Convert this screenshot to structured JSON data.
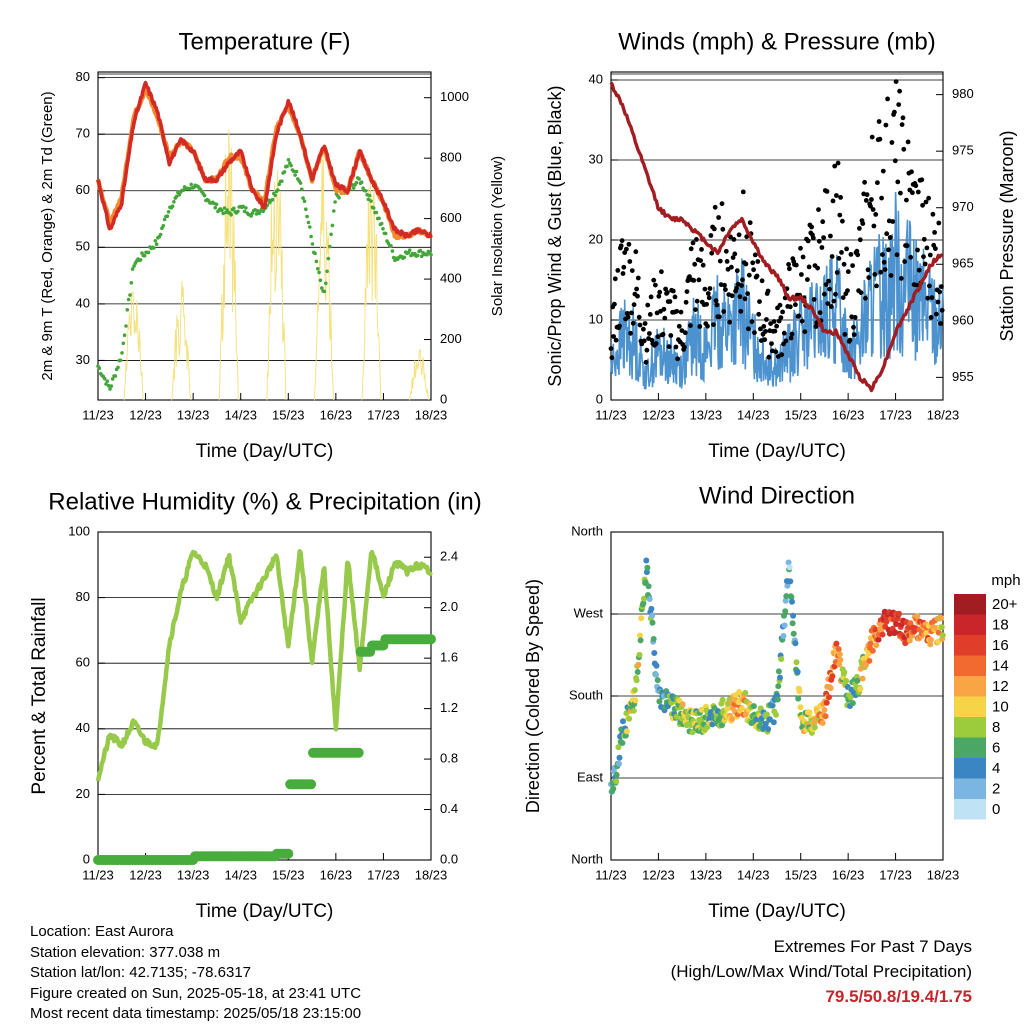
{
  "temperature": {
    "title": "Temperature (F)",
    "ylabel_left": "2m & 9m T (Red, Orange) & 2m Td (Green)",
    "ylabel_right": "Solar Insolation (Yellow)",
    "xlabel": "Time (Day/UTC)",
    "left_ticks": [
      "30",
      "40",
      "50",
      "60",
      "70",
      "80"
    ],
    "right_ticks": [
      "0",
      "200",
      "400",
      "600",
      "800",
      "1000"
    ]
  },
  "winds": {
    "title": "Winds (mph) & Pressure (mb)",
    "ylabel_left": "Sonic/Prop Wind & Gust (Blue, Black)",
    "ylabel_right": "Station Pressure (Maroon)",
    "xlabel": "Time (Day/UTC)",
    "left_ticks": [
      "0",
      "10",
      "20",
      "30",
      "40"
    ],
    "right_ticks": [
      "955",
      "960",
      "965",
      "970",
      "975",
      "980"
    ]
  },
  "humidity": {
    "title": "Relative Humidity (%) & Precipitation (in)",
    "ylabel_left": "Percent & Total Rainfall",
    "xlabel": "Time (Day/UTC)",
    "left_ticks": [
      "0",
      "20",
      "40",
      "60",
      "80",
      "100"
    ],
    "right_ticks": [
      "0.0",
      "0.4",
      "0.8",
      "1.2",
      "1.6",
      "2.0",
      "2.4"
    ]
  },
  "direction": {
    "title": "Wind Direction",
    "ylabel_left": "Direction (Colored By Speed)",
    "xlabel": "Time (Day/UTC)",
    "ticks": [
      "North",
      "East",
      "South",
      "West",
      "North"
    ],
    "legend_title": "mph",
    "legend_labels": [
      "20+",
      "18",
      "16",
      "14",
      "12",
      "10",
      "8",
      "6",
      "4",
      "2",
      "0"
    ],
    "legend_colors": [
      "#a11d21",
      "#c9252b",
      "#e03d2b",
      "#f26a30",
      "#f9a546",
      "#f6d448",
      "#9ccb3c",
      "#4aa766",
      "#3b85c3",
      "#7bb6e2",
      "#bfe2f5"
    ]
  },
  "x_ticks": [
    "11/23",
    "12/23",
    "13/23",
    "14/23",
    "15/23",
    "16/23",
    "17/23",
    "18/23"
  ],
  "info": {
    "location": "Location: East Aurora",
    "elevation": "Station elevation: 377.038 m",
    "latlon": "Station lat/lon: 42.7135; -78.6317",
    "created": "Figure created on Sun, 2025-05-18, at 23:41 UTC",
    "recent": "Most recent data timestamp: 2025/05/18 23:15:00"
  },
  "extremes": {
    "title": "Extremes For Past 7 Days",
    "subtitle": "(High/Low/Max Wind/Total Precipitation)",
    "values": "79.5/50.8/19.4/1.75"
  },
  "colors": {
    "temp_2m": "#d42a25",
    "temp_9m": "#f28a2e",
    "dewpoint": "#44a63a",
    "solar": "#f5e07a",
    "wind": "#4b92cf",
    "gust": "#000000",
    "pressure": "#a11d21",
    "rh": "#97c94a",
    "precip": "#48ac3c"
  },
  "chart_data": [
    {
      "type": "line",
      "title": "Temperature (F)",
      "xlabel": "Time (Day/UTC)",
      "ylabel": "2m & 9m T (Red, Orange) & 2m Td (Green)",
      "y2label": "Solar Insolation (Yellow)",
      "ylim": [
        23,
        81
      ],
      "y2lim": [
        0,
        1085
      ],
      "x": [
        11.0,
        11.25,
        11.5,
        11.75,
        12.0,
        12.25,
        12.5,
        12.75,
        13.0,
        13.25,
        13.5,
        13.75,
        14.0,
        14.25,
        14.5,
        14.75,
        15.0,
        15.25,
        15.5,
        15.75,
        16.0,
        16.25,
        16.5,
        16.75,
        17.0,
        17.25,
        17.5,
        17.75,
        18.0
      ],
      "series": [
        {
          "name": "2m T",
          "values": [
            62,
            53,
            58,
            72,
            79,
            74,
            65,
            69,
            67,
            62,
            62,
            65,
            67,
            60,
            57,
            70,
            76,
            70,
            62,
            68,
            61,
            60,
            67,
            62,
            58,
            53,
            52,
            53,
            52
          ]
        },
        {
          "name": "9m T",
          "values": [
            62,
            54,
            59,
            73,
            78,
            73,
            66,
            69,
            67,
            62,
            62,
            66,
            66,
            60,
            58,
            71,
            75,
            70,
            62,
            68,
            60,
            60,
            67,
            62,
            58,
            52,
            52,
            53,
            52
          ]
        },
        {
          "name": "2m Td",
          "values": [
            29,
            25,
            31,
            47,
            49,
            51,
            57,
            60,
            61,
            59,
            57,
            56,
            57,
            56,
            57,
            60,
            65,
            62,
            51,
            41,
            59,
            60,
            62,
            58,
            53,
            48,
            49,
            49,
            49
          ]
        },
        {
          "name": "Solar Insolation",
          "axis": "right",
          "values": [
            0,
            0,
            0,
            450,
            0,
            0,
            0,
            400,
            0,
            0,
            0,
            950,
            0,
            0,
            0,
            1000,
            0,
            0,
            0,
            880,
            0,
            0,
            0,
            820,
            0,
            0,
            0,
            180,
            0
          ]
        }
      ]
    },
    {
      "type": "line",
      "title": "Winds (mph) & Pressure (mb)",
      "xlabel": "Time (Day/UTC)",
      "ylabel": "Sonic/Prop Wind & Gust (Blue, Black)",
      "y2label": "Station Pressure (Maroon)",
      "ylim": [
        0,
        41
      ],
      "y2lim": [
        953,
        982
      ],
      "x": [
        11.0,
        11.25,
        11.5,
        11.75,
        12.0,
        12.25,
        12.5,
        12.75,
        13.0,
        13.25,
        13.5,
        13.75,
        14.0,
        14.25,
        14.5,
        14.75,
        15.0,
        15.25,
        15.5,
        15.75,
        16.0,
        16.25,
        16.5,
        16.75,
        17.0,
        17.25,
        17.5,
        17.75,
        18.0
      ],
      "series": [
        {
          "name": "Wind",
          "values": [
            4,
            8,
            7,
            3,
            6,
            5,
            4,
            8,
            6,
            10,
            9,
            11,
            7,
            5,
            4,
            6,
            8,
            9,
            10,
            12,
            6,
            8,
            12,
            13,
            16,
            14,
            12,
            11,
            9
          ]
        },
        {
          "name": "Gust",
          "values": [
            8,
            16,
            14,
            8,
            12,
            10,
            8,
            16,
            12,
            18,
            16,
            19,
            14,
            10,
            8,
            12,
            14,
            16,
            18,
            22,
            12,
            16,
            24,
            26,
            28,
            24,
            20,
            18,
            16
          ]
        },
        {
          "name": "Station Pressure",
          "axis": "right",
          "values": [
            981,
            979,
            976,
            973,
            970,
            969,
            969,
            968,
            967,
            966,
            968,
            969,
            967,
            965,
            964,
            962,
            962,
            961,
            959,
            959,
            957,
            955,
            954,
            956,
            959,
            961,
            963,
            965,
            966
          ]
        }
      ]
    },
    {
      "type": "line",
      "title": "Relative Humidity (%) & Precipitation (in)",
      "xlabel": "Time (Day/UTC)",
      "ylabel": "Percent & Total Rainfall",
      "ylim": [
        0,
        100
      ],
      "y2lim": [
        0,
        2.6
      ],
      "x": [
        11.0,
        11.25,
        11.5,
        11.75,
        12.0,
        12.25,
        12.5,
        12.75,
        13.0,
        13.25,
        13.5,
        13.75,
        14.0,
        14.25,
        14.5,
        14.75,
        15.0,
        15.25,
        15.5,
        15.75,
        16.0,
        16.25,
        16.5,
        16.75,
        17.0,
        17.25,
        17.5,
        17.75,
        18.0
      ],
      "series": [
        {
          "name": "Relative Humidity",
          "values": [
            25,
            38,
            35,
            42,
            36,
            35,
            66,
            82,
            94,
            90,
            80,
            93,
            73,
            80,
            86,
            93,
            65,
            95,
            60,
            90,
            40,
            92,
            58,
            95,
            80,
            91,
            88,
            90,
            88
          ]
        },
        {
          "name": "Total Rainfall",
          "axis": "right",
          "values": [
            0,
            0,
            0,
            0,
            0,
            0,
            0,
            0,
            0.03,
            0.03,
            0.03,
            0.03,
            0.03,
            0.03,
            0.03,
            0.05,
            0.6,
            0.6,
            0.85,
            0.85,
            0.85,
            0.85,
            1.65,
            1.7,
            1.75,
            1.75,
            1.75,
            1.75,
            1.75
          ]
        }
      ]
    },
    {
      "type": "scatter",
      "title": "Wind Direction",
      "xlabel": "Time (Day/UTC)",
      "ylabel": "Direction (Colored By Speed)",
      "yticks": [
        "North",
        "East",
        "South",
        "West",
        "North"
      ],
      "ylim": [
        0,
        360
      ],
      "colorbar": {
        "label": "mph",
        "range": [
          0,
          20
        ]
      },
      "x": [
        11.0,
        11.25,
        11.5,
        11.75,
        12.0,
        12.25,
        12.5,
        12.75,
        13.0,
        13.25,
        13.5,
        13.75,
        14.0,
        14.25,
        14.5,
        14.75,
        15.0,
        15.25,
        15.5,
        15.75,
        16.0,
        16.25,
        16.5,
        16.75,
        17.0,
        17.25,
        17.5,
        17.75,
        18.0
      ],
      "series": [
        {
          "name": "Direction",
          "values": [
            70,
            140,
            180,
            320,
            180,
            170,
            160,
            150,
            155,
            160,
            165,
            175,
            160,
            150,
            170,
            320,
            155,
            150,
            165,
            230,
            175,
            200,
            240,
            260,
            260,
            250,
            255,
            250,
            255
          ]
        },
        {
          "name": "Speed",
          "values": [
            3,
            6,
            10,
            5,
            4,
            6,
            9,
            8,
            7,
            6,
            11,
            12,
            8,
            5,
            6,
            3,
            8,
            10,
            12,
            14,
            5,
            8,
            12,
            16,
            17,
            15,
            14,
            12,
            11
          ]
        }
      ]
    }
  ]
}
